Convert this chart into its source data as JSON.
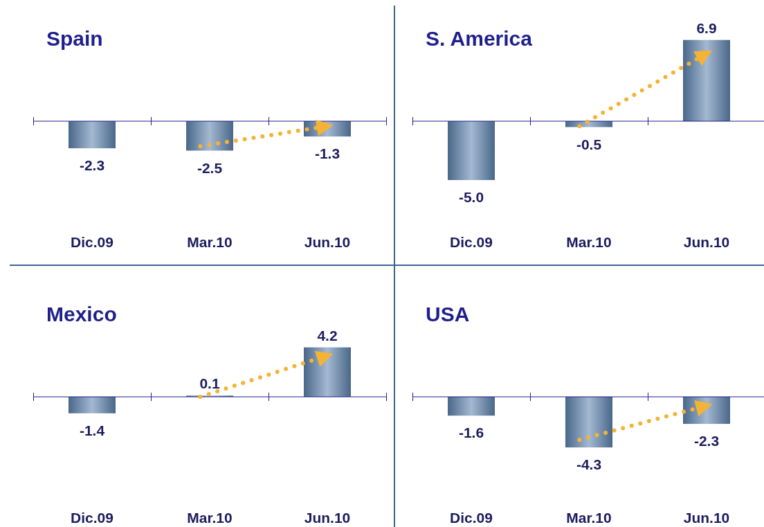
{
  "chart_data": [
    {
      "type": "bar",
      "title": "Spain",
      "categories": [
        "Dic.09",
        "Mar.10",
        "Jun.10"
      ],
      "values": [
        -2.3,
        -2.5,
        -1.3
      ],
      "color": "#5a7fab",
      "value_labels": [
        "-2.3",
        "-2.5",
        "-1.3"
      ],
      "ref_lines": [
        {
          "axis": "y",
          "value": 0,
          "color": "#1f1f8c"
        }
      ]
    },
    {
      "type": "bar",
      "title": "S. America",
      "categories": [
        "Dic.09",
        "Mar.10",
        "Jun.10"
      ],
      "values": [
        -5.0,
        -0.5,
        6.9
      ],
      "color": "#5a7fab",
      "value_labels": [
        "-5.0",
        "-0.5",
        "6.9"
      ],
      "ref_lines": [
        {
          "axis": "y",
          "value": 0,
          "color": "#1f1f8c"
        }
      ]
    },
    {
      "type": "bar",
      "title": "Mexico",
      "categories": [
        "Dic.09",
        "Mar.10",
        "Jun.10"
      ],
      "values": [
        -1.4,
        0.1,
        4.2
      ],
      "color": "#5a7fab",
      "value_labels": [
        "-1.4",
        "0.1",
        "4.2"
      ],
      "ref_lines": [
        {
          "axis": "y",
          "value": 0,
          "color": "#1f1f8c"
        }
      ]
    },
    {
      "type": "bar",
      "title": "USA",
      "categories": [
        "Dic.09",
        "Mar.10",
        "Jun.10"
      ],
      "values": [
        -1.6,
        -4.3,
        -2.3
      ],
      "color": "#5a7fab",
      "value_labels": [
        "-1.6",
        "-4.3",
        "-2.3"
      ],
      "ref_lines": [
        {
          "axis": "y",
          "value": 0,
          "color": "#1f1f8c"
        }
      ]
    }
  ]
}
